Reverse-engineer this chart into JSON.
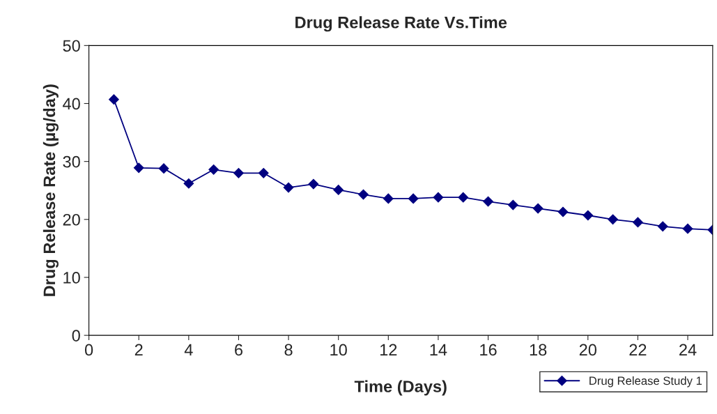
{
  "chart_data": {
    "type": "line",
    "title": "Drug Release Rate Vs.Time",
    "xlabel": "Time (Days)",
    "ylabel": "Drug Release Rate (µg/day)",
    "x": [
      1,
      2,
      3,
      4,
      5,
      6,
      7,
      8,
      9,
      10,
      11,
      12,
      13,
      14,
      15,
      16,
      17,
      18,
      19,
      20,
      21,
      22,
      23,
      24,
      25
    ],
    "series": [
      {
        "name": "Drug Release Study 1",
        "color": "#000080",
        "values": [
          40.7,
          28.9,
          28.8,
          26.2,
          28.6,
          28.0,
          28.0,
          25.5,
          26.1,
          25.1,
          24.3,
          23.6,
          23.6,
          23.8,
          23.8,
          23.1,
          22.5,
          21.9,
          21.3,
          20.7,
          20.0,
          19.5,
          18.8,
          18.4,
          18.2
        ]
      }
    ],
    "xlim": [
      0,
      25
    ],
    "xticks": [
      0,
      2,
      4,
      6,
      8,
      10,
      12,
      14,
      16,
      18,
      20,
      22,
      24
    ],
    "ylim": [
      0,
      50
    ],
    "yticks": [
      0,
      10,
      20,
      30,
      40,
      50
    ],
    "grid": false,
    "legend": "bottom right",
    "marker": "diamond",
    "line_style": "solid"
  }
}
